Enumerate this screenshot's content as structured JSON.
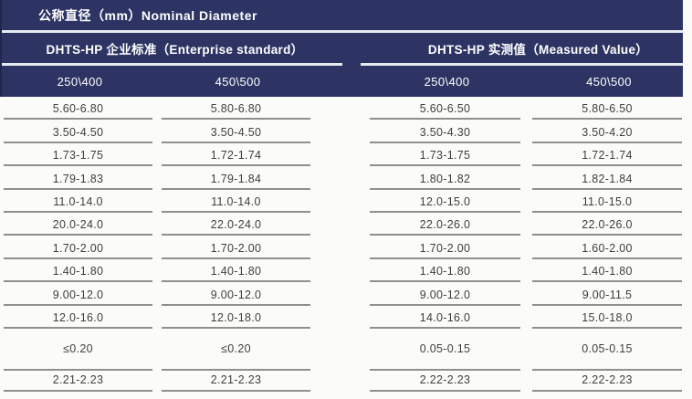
{
  "header": {
    "title": "公称直径（mm）Nominal Diameter",
    "groups": [
      {
        "label": "DHTS-HP 企业标准（Enterprise standard）"
      },
      {
        "label": "DHTS-HP 实测值（Measured Value）"
      }
    ],
    "subcolumns": [
      "250\\400",
      "450\\500",
      "250\\400",
      "450\\500"
    ]
  },
  "table": {
    "rows": [
      [
        "5.60-6.80",
        "5.80-6.80",
        "5.60-6.50",
        "5.80-6.50"
      ],
      [
        "3.50-4.50",
        "3.50-4.50",
        "3.50-4.30",
        "3.50-4.20"
      ],
      [
        "1.73-1.75",
        "1.72-1.74",
        "1.73-1.75",
        "1.72-1.74"
      ],
      [
        "1.79-1.83",
        "1.79-1.84",
        "1.80-1.82",
        "1.82-1.84"
      ],
      [
        "11.0-14.0",
        "11.0-14.0",
        "12.0-15.0",
        "11.0-15.0"
      ],
      [
        "20.0-24.0",
        "22.0-24.0",
        "22.0-26.0",
        "22.0-26.0"
      ],
      [
        "1.70-2.00",
        "1.70-2.00",
        "1.70-2.00",
        "1.60-2.00"
      ],
      [
        "1.40-1.80",
        "1.40-1.80",
        "1.40-1.80",
        "1.40-1.80"
      ],
      [
        "9.00-12.0",
        "9.00-12.0",
        "9.00-12.0",
        "9.00-11.5"
      ],
      [
        "12.0-16.0",
        "12.0-18.0",
        "14.0-16.0",
        "15.0-18.0"
      ],
      [
        "≤0.20",
        "≤0.20",
        "0.05-0.15",
        "0.05-0.15"
      ],
      [
        "2.21-2.23",
        "2.21-2.23",
        "2.22-2.23",
        "2.22-2.23"
      ]
    ]
  },
  "colors": {
    "header_bg": "#2d3464",
    "header_text": "#ffffff",
    "separator": "#e7eaf2",
    "body_text": "#3e3e3e",
    "row_line": "#8f8f8f",
    "page_bg": "#fbfbf9"
  }
}
